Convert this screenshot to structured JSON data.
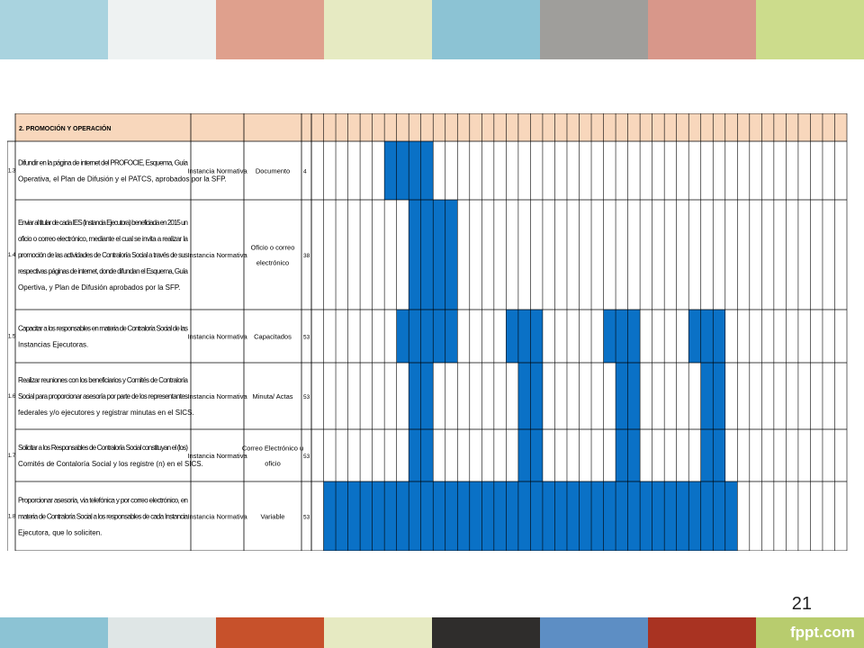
{
  "colors": {
    "top_band": [
      "#a9d3df",
      "#eef2f2",
      "#dfa08d",
      "#e6eac2",
      "#8cc3d4",
      "#9f9e9b",
      "#d8978a",
      "#ccdc8c"
    ],
    "bottom_band": [
      "#8cc3d4",
      "#dfe6e6",
      "#c7512b",
      "#e6eac2",
      "#2f2d2c",
      "#5d8ec4",
      "#a93322",
      "#b8cc6e"
    ],
    "header_fill": "#f8d7bc",
    "bar_fill": "#0a71c6",
    "grid_line": "#000000"
  },
  "slide_number": "21",
  "logo": {
    "name": "fppt",
    "suffix": ".com"
  },
  "section_header": "2.  PROMOCIÓN Y OPERACIÓN",
  "week_count": 44,
  "rows": [
    {
      "id": "1.3",
      "lines": [
        "Difundir en la página de internet del PROFOCIE, Esquema, Guía",
        "Operativa, el Plan de Difusión y el PATCS, aprobados por la SFP."
      ],
      "responsible": "Instancia Normativa",
      "unit": [
        "Documento"
      ],
      "qty": "4",
      "filled_weeks": [
        [
          6,
          9
        ]
      ]
    },
    {
      "id": "1.4",
      "lines": [
        "Enviar al titular de cada IES (Instancia Ejecutora) beneficiada en 2015 un",
        "oficio o correo electrónico, mediante el cual se invita a realizar la",
        "promoción de las actividades de Contraloría Social a través de sus",
        "respectivas páginas de internet, donde difundan el Esquema, Guía",
        "Opertiva, y Plan de Difusión aprobados por la SFP."
      ],
      "responsible": "Instancia Normativa",
      "unit": [
        "Oficio o correo",
        "electrónico"
      ],
      "qty": "38",
      "filled_weeks": [
        [
          8,
          11
        ]
      ]
    },
    {
      "id": "1.5",
      "lines": [
        "Capacitar a los responsables en materia de Contraloría Social de las",
        "Instancias Ejecutoras."
      ],
      "responsible": "Instancia Normativa",
      "unit": [
        "Capacitados"
      ],
      "qty": "53",
      "filled_weeks": [
        [
          7,
          11
        ],
        [
          16,
          18
        ],
        [
          24,
          26
        ],
        [
          31,
          33
        ]
      ]
    },
    {
      "id": "1.6",
      "lines": [
        "Realizar reuniones con los beneficiarios y Comités de Contraloría",
        "Social para proporcionar asesoría por parte de los representantes",
        "federales y/o ejecutores y registrar minutas en el SICS."
      ],
      "responsible": "Instancia Normativa",
      "unit": [
        "Minuta/ Actas"
      ],
      "qty": "53",
      "filled_weeks": [
        [
          8,
          9
        ],
        [
          17,
          18
        ],
        [
          25,
          26
        ],
        [
          32,
          33
        ]
      ]
    },
    {
      "id": "1.7",
      "lines": [
        "Solicitar a los Responsables de Contraloría Social constituyan el (los)",
        "Comités de Contaloría Social y los registre (n) en el SICS."
      ],
      "responsible": "Instancia Normativa",
      "unit": [
        "Correo Electrónico u",
        "oficio"
      ],
      "qty": "53",
      "filled_weeks": [
        [
          8,
          9
        ],
        [
          17,
          18
        ],
        [
          25,
          26
        ],
        [
          32,
          33
        ]
      ]
    },
    {
      "id": "1.8",
      "lines": [
        "Proporcionar asesoría, vía telefónica y por correo electrónico, en",
        "materia de Contraloría Social a los responsables de cada Instancia",
        "Ejecutora, que lo soliciten."
      ],
      "responsible": "Instancia Normativa",
      "unit": [
        "Variable"
      ],
      "qty": "53",
      "filled_weeks": [
        [
          1,
          34
        ]
      ]
    }
  ]
}
